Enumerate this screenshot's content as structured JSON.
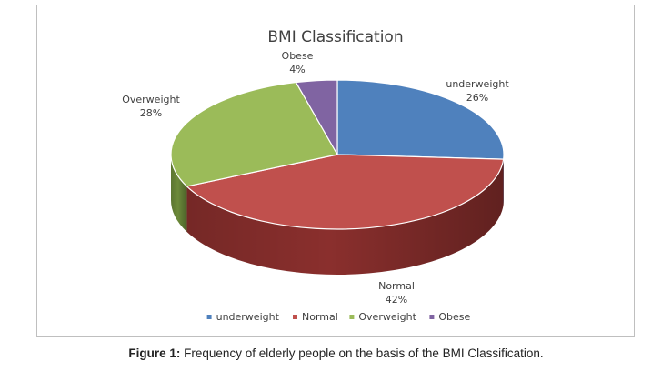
{
  "chart_data": {
    "type": "pie",
    "title": "BMI Classification",
    "slices": [
      {
        "label": "underweight",
        "value": 26,
        "percent_label": "26%",
        "color": "#4f81bd",
        "side_color": "#34568a"
      },
      {
        "label": "Normal",
        "value": 42,
        "percent_label": "42%",
        "color": "#c0504d",
        "side_color": "#8a2f2d"
      },
      {
        "label": "Overweight",
        "value": 28,
        "percent_label": "28%",
        "color": "#9bbb59",
        "side_color": "#6c8a3a"
      },
      {
        "label": "Obese",
        "value": 4,
        "percent_label": "4%",
        "color": "#8064a2",
        "side_color": "#573f74"
      }
    ],
    "legend": {
      "placement": "bottom",
      "entries": [
        "underweight",
        "Normal",
        "Overweight",
        "Obese"
      ]
    },
    "three_d": true
  },
  "caption": {
    "label": "Figure 1:",
    "text": "Frequency of elderly people on the basis of the BMI Classification."
  }
}
